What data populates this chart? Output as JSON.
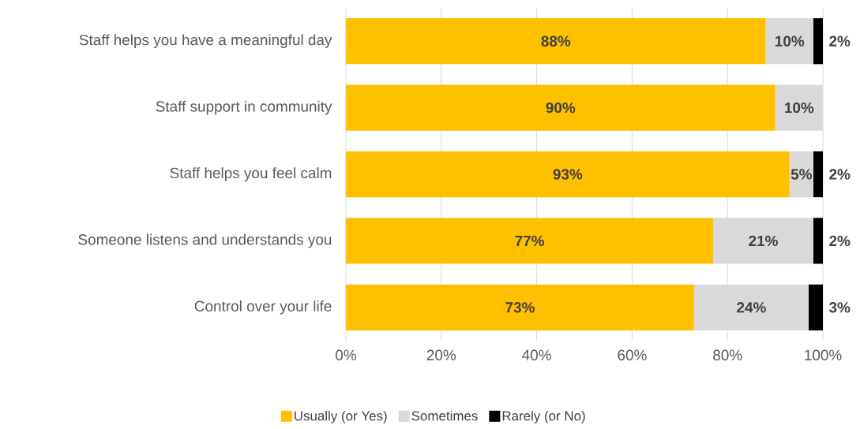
{
  "chart_data": {
    "type": "bar",
    "orientation": "horizontal",
    "stacked": true,
    "categories": [
      "Staff helps you have a meaningful day",
      "Staff support in community",
      "Staff helps you feel calm",
      "Someone listens and understands you",
      "Control over your life"
    ],
    "series": [
      {
        "name": "Usually (or Yes)",
        "color": "#ffc000",
        "values": [
          88,
          90,
          93,
          77,
          73
        ],
        "value_labels": [
          "88%",
          "90%",
          "93%",
          "77%",
          "73%"
        ]
      },
      {
        "name": "Sometimes",
        "color": "#d9d9d9",
        "values": [
          10,
          10,
          5,
          21,
          24
        ],
        "value_labels": [
          "10%",
          "10%",
          "5%",
          "21%",
          "24%"
        ]
      },
      {
        "name": "Rarely (or No)",
        "color": "#000000",
        "values": [
          2,
          null,
          2,
          2,
          3
        ],
        "value_labels": [
          "2%",
          null,
          "2%",
          "2%",
          "3%"
        ]
      }
    ],
    "xlim": [
      0,
      100
    ],
    "xticks": [
      {
        "value": 0,
        "label": "0%"
      },
      {
        "value": 20,
        "label": "20%"
      },
      {
        "value": 40,
        "label": "40%"
      },
      {
        "value": 60,
        "label": "60%"
      },
      {
        "value": 80,
        "label": "80%"
      },
      {
        "value": 100,
        "label": "100%"
      }
    ],
    "grid": "x",
    "legend": "bottom"
  }
}
